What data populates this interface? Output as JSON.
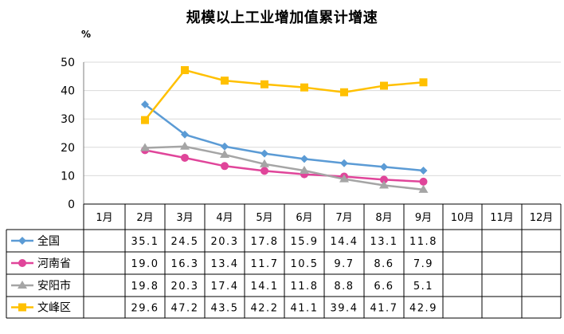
{
  "chart_data": {
    "type": "line",
    "title": "规模以上工业增加值累计增速",
    "unit": "%",
    "ylim": [
      0,
      50
    ],
    "yticks": [
      "0",
      "10",
      "20",
      "30",
      "40",
      "50"
    ],
    "categories": [
      "1月",
      "2月",
      "3月",
      "4月",
      "5月",
      "6月",
      "7月",
      "8月",
      "9月",
      "10月",
      "11月",
      "12月"
    ],
    "series": [
      {
        "name": "全国",
        "color": "#5B9BD5",
        "marker": "diamond",
        "values": [
          null,
          35.1,
          24.5,
          20.3,
          17.8,
          15.9,
          14.4,
          13.1,
          11.8,
          null,
          null,
          null
        ],
        "labels": [
          "",
          "35.1",
          "24.5",
          "20.3",
          "17.8",
          "15.9",
          "14.4",
          "13.1",
          "11.8",
          "",
          "",
          ""
        ]
      },
      {
        "name": "河南省",
        "color": "#E0459A",
        "marker": "circle",
        "values": [
          null,
          19.0,
          16.3,
          13.4,
          11.7,
          10.5,
          9.7,
          8.6,
          7.9,
          null,
          null,
          null
        ],
        "labels": [
          "",
          "19.0",
          "16.3",
          "13.4",
          "11.7",
          "10.5",
          "9.7",
          "8.6",
          "7.9",
          "",
          "",
          ""
        ]
      },
      {
        "name": "安阳市",
        "color": "#A5A5A5",
        "marker": "triangle",
        "values": [
          null,
          19.8,
          20.3,
          17.4,
          14.1,
          11.8,
          8.8,
          6.6,
          5.1,
          null,
          null,
          null
        ],
        "labels": [
          "",
          "19.8",
          "20.3",
          "17.4",
          "14.1",
          "11.8",
          "8.8",
          "6.6",
          "5.1",
          "",
          "",
          ""
        ]
      },
      {
        "name": "文峰区",
        "color": "#FFC000",
        "marker": "square",
        "values": [
          null,
          29.6,
          47.2,
          43.5,
          42.2,
          41.1,
          39.4,
          41.7,
          42.9,
          null,
          null,
          null
        ],
        "labels": [
          "",
          "29.6",
          "47.2",
          "43.5",
          "42.2",
          "41.1",
          "39.4",
          "41.7",
          "42.9",
          "",
          "",
          ""
        ]
      }
    ],
    "grid": true,
    "legend": "data-table"
  }
}
